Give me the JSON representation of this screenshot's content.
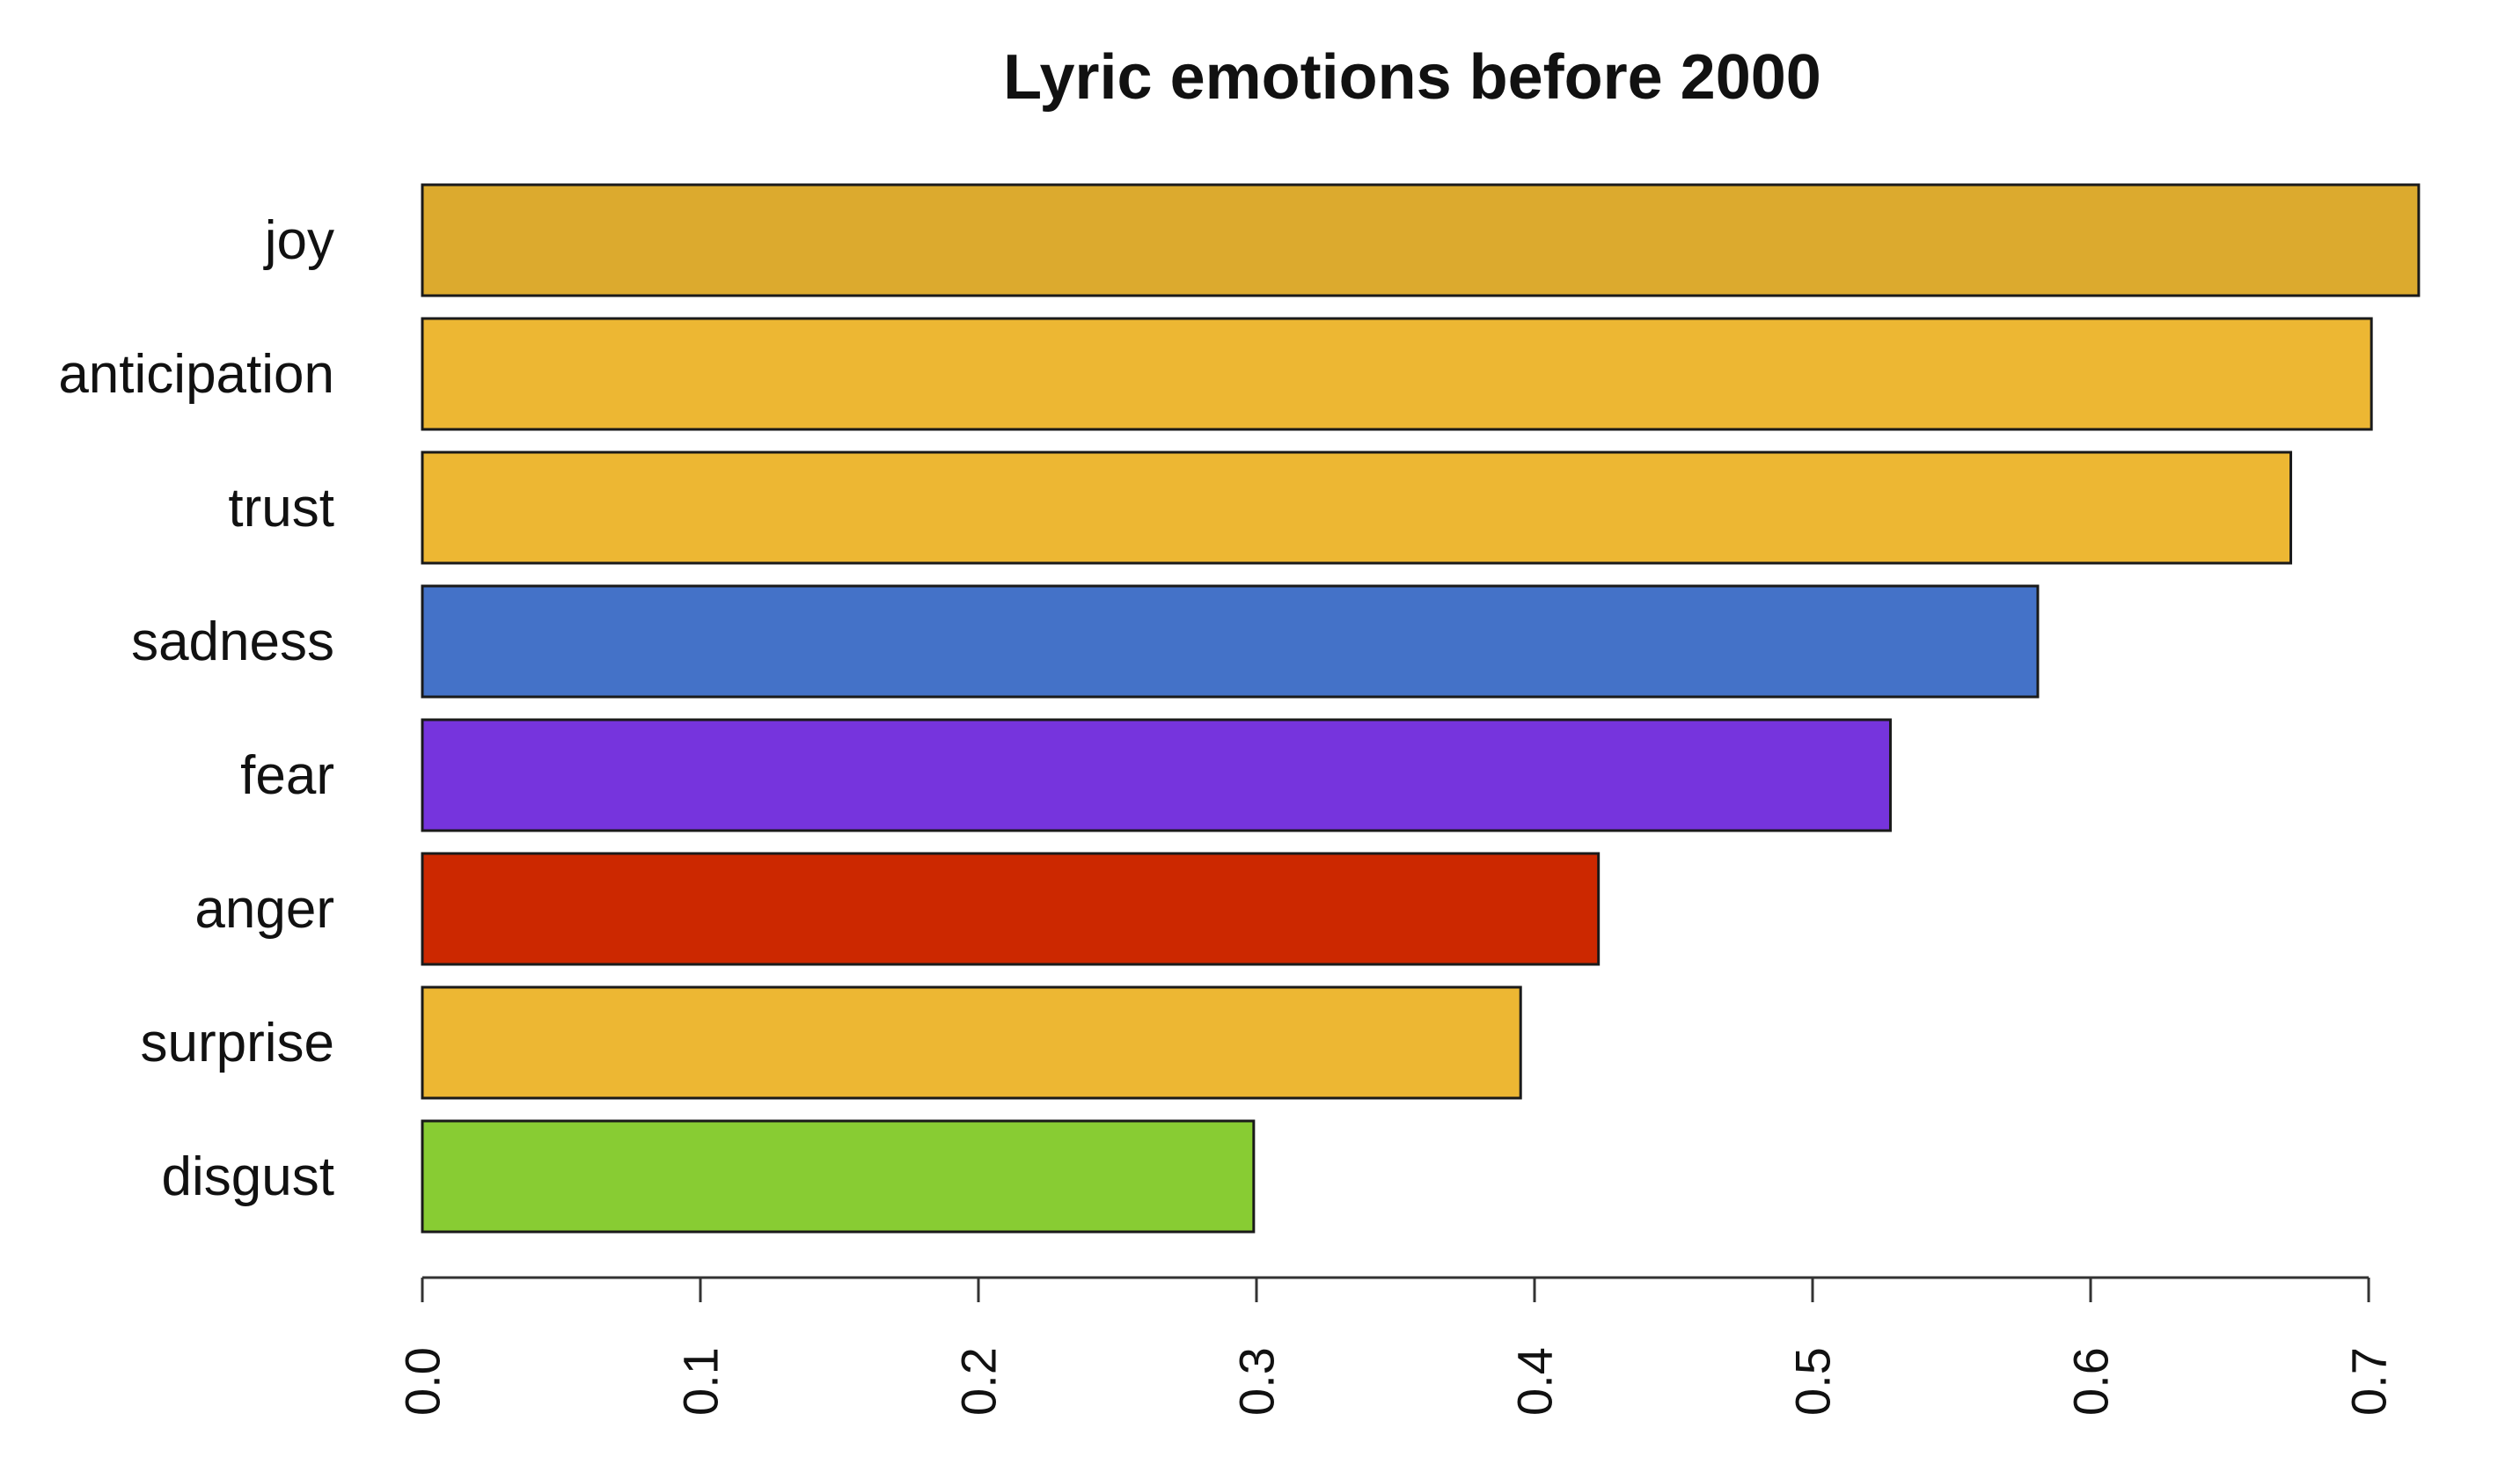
{
  "chart_data": {
    "type": "bar",
    "orientation": "horizontal",
    "title": "Lyric emotions before 2000",
    "xlabel": "",
    "ylabel": "",
    "categories": [
      "joy",
      "anticipation",
      "trust",
      "sadness",
      "fear",
      "anger",
      "surprise",
      "disgust"
    ],
    "values": [
      0.718,
      0.701,
      0.672,
      0.581,
      0.528,
      0.423,
      0.395,
      0.299
    ],
    "colors": [
      "#DCAA2E",
      "#EDB733",
      "#EDB733",
      "#4472C8",
      "#7634DD",
      "#CC2800",
      "#EDB733",
      "#88CC33"
    ],
    "xlim": [
      0,
      0.7
    ],
    "x_ticks": [
      "0.0",
      "0.1",
      "0.2",
      "0.3",
      "0.4",
      "0.5",
      "0.6",
      "0.7"
    ],
    "tick_label_orientation": "vertical",
    "grid": false,
    "legend": "none"
  }
}
